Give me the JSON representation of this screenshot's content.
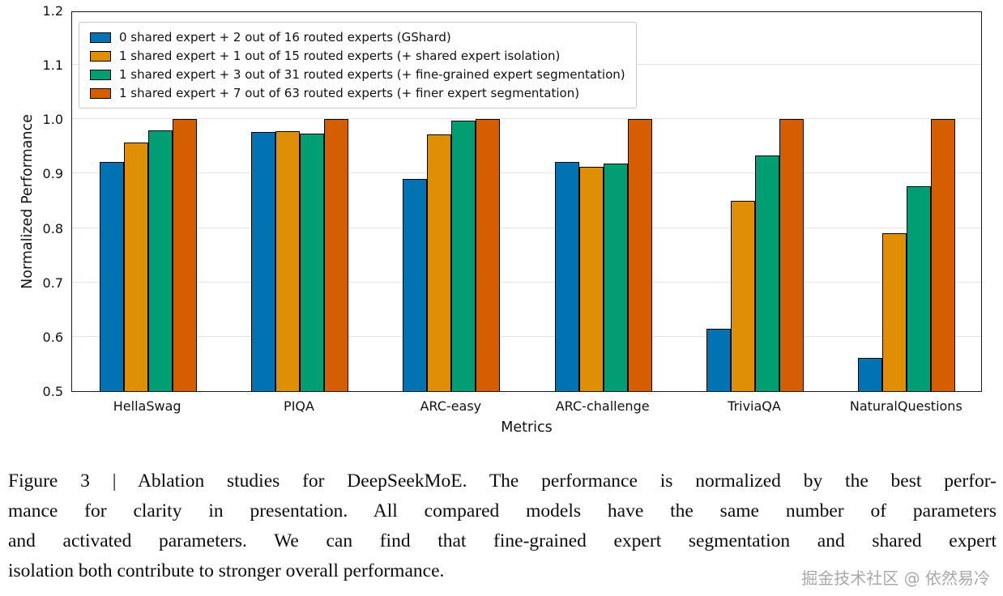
{
  "chart_data": {
    "type": "bar",
    "title": "",
    "xlabel": "Metrics",
    "ylabel": "Normalized Performance",
    "ylim": [
      0.5,
      1.2
    ],
    "yticks": [
      0.5,
      0.6,
      0.7,
      0.8,
      0.9,
      1.0,
      1.1,
      1.2
    ],
    "grid": "horizontal",
    "legend_position": "upper-left",
    "categories": [
      "HellaSwag",
      "PIQA",
      "ARC-easy",
      "ARC-challenge",
      "TriviaQA",
      "NaturalQuestions"
    ],
    "series": [
      {
        "name": "0 shared expert + 2 out of 16 routed experts (GShard)",
        "color": "#0173B2",
        "values": [
          0.922,
          0.977,
          0.89,
          0.921,
          0.615,
          0.561
        ]
      },
      {
        "name": "1 shared expert + 1 out of 15 routed experts (+ shared expert isolation)",
        "color": "#DE8F05",
        "values": [
          0.957,
          0.978,
          0.972,
          0.912,
          0.85,
          0.79
        ]
      },
      {
        "name": "1 shared expert + 3 out of 31 routed experts (+ fine-grained expert segmentation)",
        "color": "#029E73",
        "values": [
          0.98,
          0.974,
          0.998,
          0.918,
          0.934,
          0.877
        ]
      },
      {
        "name": "1 shared expert + 7 out of 63 routed experts (+ finer expert segmentation)",
        "color": "#D55E00",
        "values": [
          1.0,
          1.0,
          1.0,
          1.0,
          1.0,
          1.0
        ]
      }
    ]
  },
  "caption": {
    "lines": [
      "Figure 3 | Ablation studies for DeepSeekMoE. The performance is normalized by the best perfor-",
      "mance for clarity in presentation. All compared models have the same number of parameters",
      "and activated parameters. We can find that fine-grained expert segmentation and shared expert",
      "isolation both contribute to stronger overall performance."
    ]
  },
  "watermark": "掘金技术社区 @ 依然易冷"
}
